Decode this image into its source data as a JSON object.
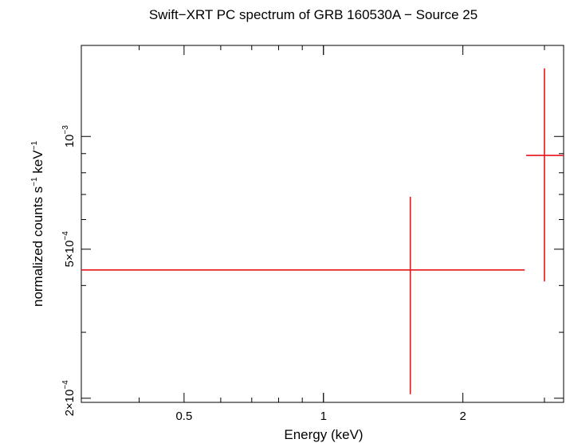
{
  "chart_data": {
    "type": "scatter",
    "title": "Swift−XRT PC spectrum of GRB 160530A − Source 25",
    "xlabel": "Energy (keV)",
    "ylabel": {
      "base": "normalized counts s",
      "sup1": "−1",
      "mid": " keV",
      "sup2": "−1"
    },
    "x_scale": "log",
    "y_scale": "log",
    "xlim": [
      0.3,
      3.3
    ],
    "ylim": [
      0.000195,
      0.00175
    ],
    "x_ticks": [
      {
        "value": 0.5,
        "label": "0.5"
      },
      {
        "value": 1,
        "label": "1"
      },
      {
        "value": 2,
        "label": "2"
      }
    ],
    "y_ticks": [
      {
        "value": 0.0002,
        "mantissa": "2×10",
        "exp": "−4"
      },
      {
        "value": 0.0005,
        "mantissa": "5×10",
        "exp": "−4"
      },
      {
        "value": 0.001,
        "mantissa": "10",
        "exp": "−3"
      }
    ],
    "series": [
      {
        "color": "#e8141a",
        "points": [
          {
            "x": 1.54,
            "xlo": 0.3,
            "xhi": 2.72,
            "y": 0.00044,
            "ylo": 0.000205,
            "yhi": 0.00069
          },
          {
            "x": 3.0,
            "xlo": 2.74,
            "xhi": 3.3,
            "y": 0.00089,
            "ylo": 0.00041,
            "yhi": 0.00152
          }
        ]
      }
    ]
  }
}
